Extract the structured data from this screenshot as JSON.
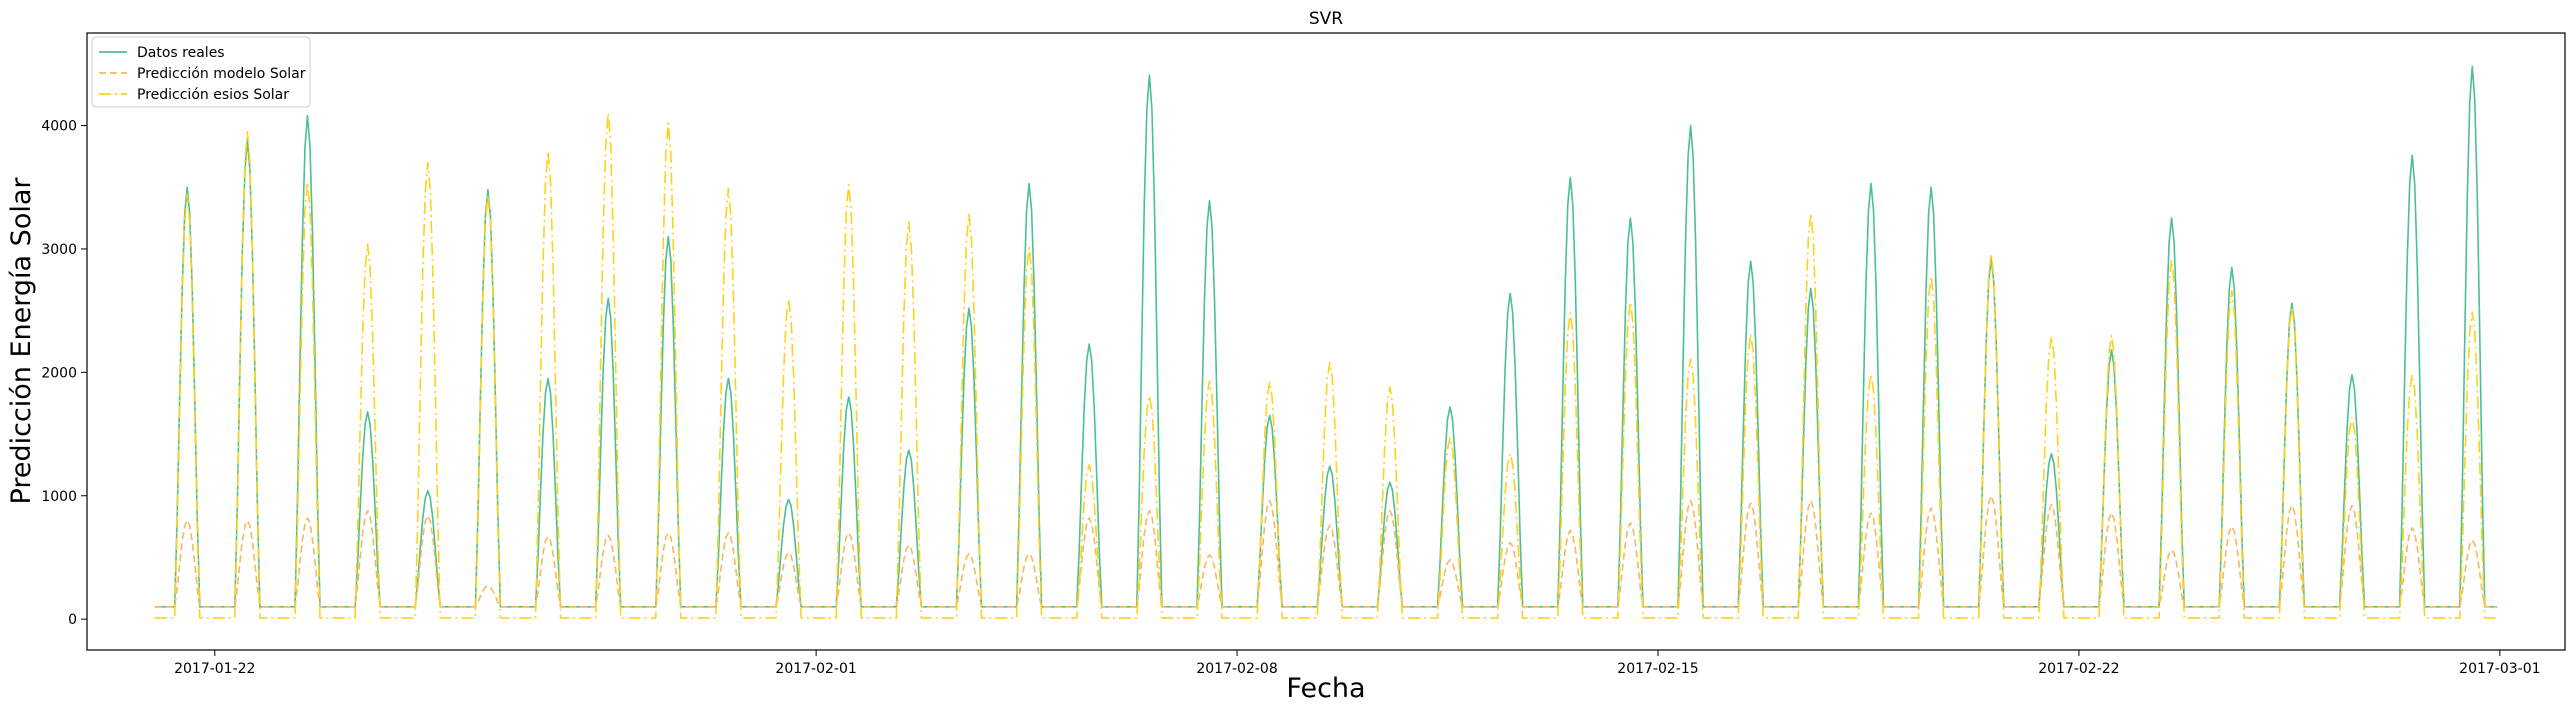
{
  "chart_data": {
    "type": "line",
    "title": "SVR",
    "xlabel": "Fecha",
    "ylabel": "Predicción Energía Solar",
    "xlim": [
      "2017-01-19T21:00",
      "2017-03-02T02:00"
    ],
    "ylim": [
      -250,
      4750
    ],
    "x_ticks": [
      "2017-01-22",
      "2017-02-01",
      "2017-02-08",
      "2017-02-15",
      "2017-02-22",
      "2017-03-01"
    ],
    "y_ticks": [
      0,
      1000,
      2000,
      3000,
      4000
    ],
    "grid": false,
    "legend_position": "top-left",
    "x_start": "2017-01-21",
    "x_end": "2017-02-28",
    "series": [
      {
        "name": "Datos reales",
        "color": "#4dbf94",
        "style": "solid",
        "night_level": 100,
        "peaks": [
          3500,
          3880,
          4080,
          1680,
          1040,
          3480,
          1950,
          2600,
          3100,
          1950,
          970,
          1800,
          1370,
          2520,
          3530,
          2230,
          4410,
          3390,
          1650,
          1240,
          1110,
          1720,
          2640,
          3580,
          3250,
          4000,
          2900,
          2680,
          3530,
          3500,
          2920,
          1340,
          2180,
          3250,
          2850,
          2560,
          1980,
          3760,
          4480
        ]
      },
      {
        "name": "Predicción modelo Solar",
        "color": "#f5b85e",
        "style": "dashed",
        "night_level": 100,
        "peaks": [
          800,
          800,
          820,
          880,
          840,
          270,
          670,
          680,
          700,
          700,
          540,
          700,
          600,
          530,
          530,
          820,
          880,
          520,
          960,
          760,
          880,
          480,
          620,
          720,
          780,
          960,
          940,
          960,
          860,
          900,
          1000,
          930,
          860,
          560,
          750,
          920,
          920,
          740,
          640
        ]
      },
      {
        "name": "Predicción esios Solar",
        "color": "#ffd11a",
        "style": "dashdot",
        "night_level": 10,
        "peaks": [
          3440,
          3950,
          3540,
          3040,
          3700,
          3440,
          3790,
          4100,
          4020,
          3490,
          2590,
          3520,
          3220,
          3280,
          3010,
          1250,
          1810,
          1930,
          1920,
          2080,
          1880,
          1470,
          1340,
          2480,
          2570,
          2110,
          2310,
          3290,
          1980,
          2780,
          2960,
          2290,
          2300,
          2910,
          2660,
          2530,
          1630,
          1980,
          2490
        ]
      }
    ]
  }
}
